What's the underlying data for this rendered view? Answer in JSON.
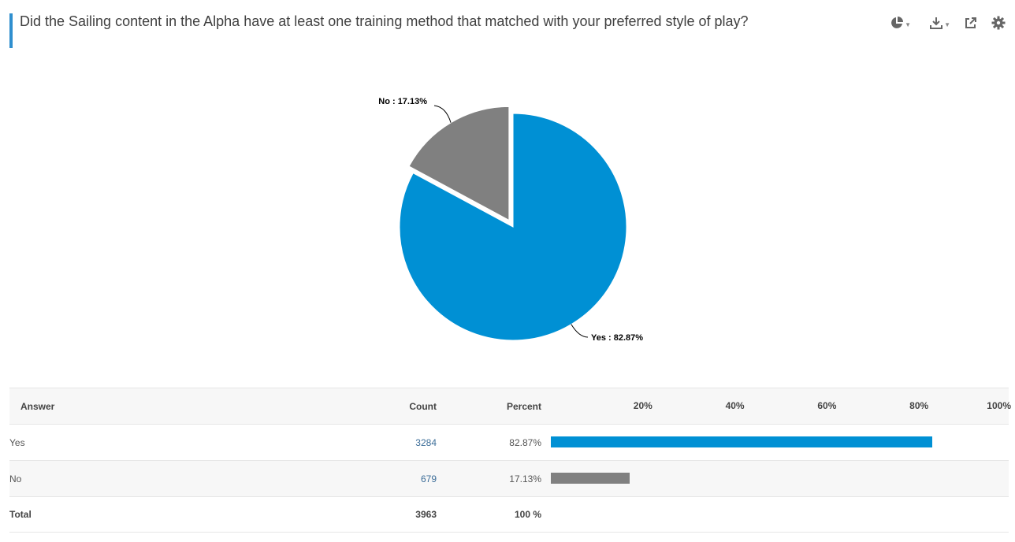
{
  "question": {
    "title": "Did the Sailing content in the Alpha have at least one training method that matched with your preferred style of play?"
  },
  "toolbar": {
    "icons": [
      "pie-chart-icon",
      "download-icon",
      "share-icon",
      "gear-icon"
    ]
  },
  "chart_data": [
    {
      "type": "pie",
      "slices": [
        {
          "label": "Yes",
          "value": 82.87,
          "display": "Yes : 82.87%",
          "color": "#0090d4"
        },
        {
          "label": "No",
          "value": 17.13,
          "display": "No : 17.13%",
          "color": "#808080"
        }
      ],
      "exploded": "No"
    },
    {
      "type": "bar",
      "orientation": "horizontal",
      "categories": [
        "Yes",
        "No"
      ],
      "values": [
        82.87,
        17.13
      ],
      "xlim": [
        0,
        100
      ],
      "ticks": [
        "20%",
        "40%",
        "60%",
        "80%",
        "100%"
      ],
      "colors": [
        "#0090d4",
        "#808080"
      ]
    }
  ],
  "table": {
    "headers": {
      "answer": "Answer",
      "count": "Count",
      "percent": "Percent"
    },
    "rows": [
      {
        "answer": "Yes",
        "count": "3284",
        "percent": "82.87%"
      },
      {
        "answer": "No",
        "count": "679",
        "percent": "17.13%"
      }
    ],
    "total": {
      "label": "Total",
      "count": "3963",
      "percent": "100 %"
    }
  }
}
